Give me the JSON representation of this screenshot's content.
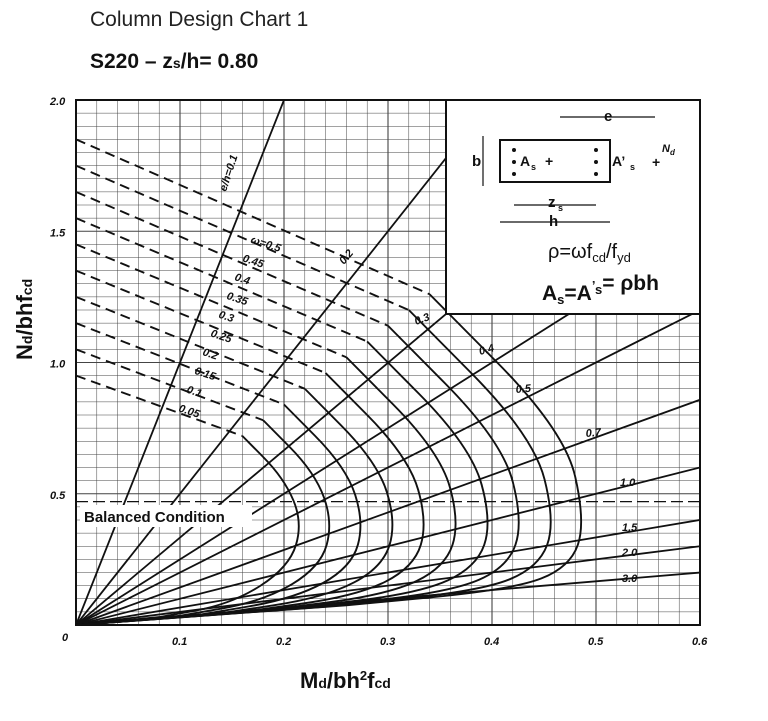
{
  "title": "Column Design Chart 1",
  "subtitle": "S220 – z",
  "subtitle_sub": "s",
  "subtitle_tail": "/h= 0.80",
  "chart_data": {
    "type": "line",
    "xlabel": {
      "main": "M",
      "sub1": "d",
      "mid": "/bh",
      "sup": "2",
      "tail": "f",
      "sub2": "cd"
    },
    "ylabel": {
      "main": "N",
      "sub1": "d",
      "mid": "/bhf",
      "sub2": "cd"
    },
    "xlim": [
      0,
      0.6
    ],
    "ylim": [
      0,
      2.0
    ],
    "x_ticks": [
      "0.1",
      "0.2",
      "0.3",
      "0.4",
      "0.5",
      "0.6"
    ],
    "y_ticks": [
      "0.5",
      "1.0",
      "1.5",
      "2.0"
    ],
    "origin_label": "0",
    "omega_values": [
      0.05,
      0.1,
      0.15,
      0.2,
      0.25,
      0.3,
      0.35,
      0.4,
      0.45,
      0.5
    ],
    "omega_labels": [
      "0.05",
      "0.1",
      "0.15",
      "0.2",
      "0.25",
      "0.3",
      "0.35",
      "0.4",
      "0.45",
      "ω=0.5"
    ],
    "omega_curves": [
      {
        "w": 0.05,
        "points": [
          [
            0.0,
            0.95
          ],
          [
            0.16,
            0.72
          ],
          [
            0.2,
            0.56
          ],
          [
            0.218,
            0.39
          ],
          [
            0.205,
            0.22
          ],
          [
            0.15,
            0.08
          ],
          [
            0.08,
            0.03
          ]
        ]
      },
      {
        "w": 0.1,
        "points": [
          [
            0.0,
            1.05
          ],
          [
            0.18,
            0.78
          ],
          [
            0.23,
            0.58
          ],
          [
            0.247,
            0.39
          ],
          [
            0.235,
            0.22
          ],
          [
            0.18,
            0.09
          ],
          [
            0.1,
            0.035
          ]
        ]
      },
      {
        "w": 0.15,
        "points": [
          [
            0.0,
            1.15
          ],
          [
            0.2,
            0.84
          ],
          [
            0.26,
            0.6
          ],
          [
            0.277,
            0.39
          ],
          [
            0.265,
            0.22
          ],
          [
            0.21,
            0.1
          ],
          [
            0.12,
            0.04
          ]
        ]
      },
      {
        "w": 0.2,
        "points": [
          [
            0.0,
            1.25
          ],
          [
            0.22,
            0.9
          ],
          [
            0.29,
            0.62
          ],
          [
            0.308,
            0.39
          ],
          [
            0.295,
            0.22
          ],
          [
            0.24,
            0.105
          ],
          [
            0.14,
            0.045
          ]
        ]
      },
      {
        "w": 0.25,
        "points": [
          [
            0.0,
            1.35
          ],
          [
            0.24,
            0.96
          ],
          [
            0.32,
            0.64
          ],
          [
            0.338,
            0.39
          ],
          [
            0.325,
            0.22
          ],
          [
            0.27,
            0.11
          ],
          [
            0.16,
            0.05
          ]
        ]
      },
      {
        "w": 0.3,
        "points": [
          [
            0.0,
            1.45
          ],
          [
            0.26,
            1.02
          ],
          [
            0.35,
            0.66
          ],
          [
            0.369,
            0.39
          ],
          [
            0.355,
            0.22
          ],
          [
            0.3,
            0.115
          ],
          [
            0.18,
            0.055
          ]
        ]
      },
      {
        "w": 0.35,
        "points": [
          [
            0.0,
            1.55
          ],
          [
            0.28,
            1.08
          ],
          [
            0.38,
            0.68
          ],
          [
            0.4,
            0.39
          ],
          [
            0.385,
            0.22
          ],
          [
            0.33,
            0.12
          ],
          [
            0.2,
            0.06
          ]
        ]
      },
      {
        "w": 0.4,
        "points": [
          [
            0.0,
            1.65
          ],
          [
            0.3,
            1.14
          ],
          [
            0.41,
            0.7
          ],
          [
            0.43,
            0.39
          ],
          [
            0.415,
            0.22
          ],
          [
            0.36,
            0.125
          ],
          [
            0.22,
            0.065
          ]
        ]
      },
      {
        "w": 0.45,
        "points": [
          [
            0.0,
            1.75
          ],
          [
            0.32,
            1.2
          ],
          [
            0.44,
            0.72
          ],
          [
            0.461,
            0.39
          ],
          [
            0.445,
            0.22
          ],
          [
            0.39,
            0.13
          ],
          [
            0.24,
            0.07
          ]
        ]
      },
      {
        "w": 0.5,
        "points": [
          [
            0.0,
            1.85
          ],
          [
            0.34,
            1.26
          ],
          [
            0.47,
            0.74
          ],
          [
            0.49,
            0.39
          ],
          [
            0.475,
            0.22
          ],
          [
            0.42,
            0.135
          ],
          [
            0.26,
            0.075
          ]
        ]
      }
    ],
    "eccentricity_rays": [
      {
        "label": "e/h=0.1",
        "slope": 10.0
      },
      {
        "label": "0.2",
        "slope": 5.0
      },
      {
        "label": "0.3",
        "slope": 3.33
      },
      {
        "label": "0.4",
        "slope": 2.5
      },
      {
        "label": "0.5",
        "slope": 2.0
      },
      {
        "label": "0.7",
        "slope": 1.43
      },
      {
        "label": "1.0",
        "slope": 1.0
      },
      {
        "label": "1.5",
        "slope": 0.667
      },
      {
        "label": "2.0",
        "slope": 0.5
      },
      {
        "label": "3.0",
        "slope": 0.333
      }
    ],
    "balanced_condition": {
      "label": "Balanced Condition",
      "y": 0.47
    },
    "inset": {
      "e_label": "e",
      "nd_label": "N",
      "nd_sub": "d",
      "b_label": "b",
      "as_label": "A",
      "as_sub": "s",
      "asp_label": "A’",
      "asp_sub": "s",
      "zs_label": "z",
      "zs_sub": "s",
      "h_label": "h",
      "rho_formula": "ρ=ωf",
      "rho_sub1": "cd",
      "rho_mid": "/f",
      "rho_sub2": "yd",
      "as_formula_a": "A",
      "as_formula_sub1": "s",
      "as_formula_b": "=A",
      "as_formula_sup": "’",
      "as_formula_sub2": "s",
      "as_formula_c": "= ρbh"
    }
  }
}
